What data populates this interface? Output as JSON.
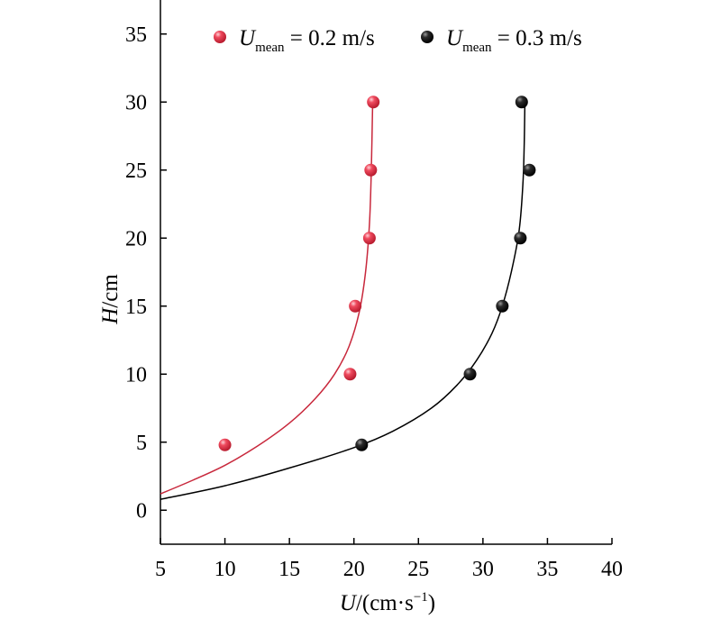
{
  "chart_data": {
    "type": "scatter",
    "xlabel": {
      "var": "U",
      "unit": "/(cm·s",
      "exp": "−1",
      "close": ")"
    },
    "ylabel": {
      "var": "H",
      "unit": "/cm"
    },
    "xlim": [
      5,
      40
    ],
    "ylim": [
      -2.5,
      37.5
    ],
    "xticks": [
      5,
      10,
      15,
      20,
      25,
      30,
      35,
      40
    ],
    "yticks": [
      0,
      5,
      10,
      15,
      20,
      25,
      30,
      35
    ],
    "grid": false,
    "legend_position": "top",
    "series": [
      {
        "name": "U_mean = 0.2 m/s",
        "legend": {
          "var": "U",
          "sub": "mean",
          "rest": " = 0.2 m/s"
        },
        "color": "#e8344a",
        "line_color": "#c8283c",
        "points": [
          {
            "x": 10.0,
            "y": 4.8
          },
          {
            "x": 19.7,
            "y": 10
          },
          {
            "x": 20.1,
            "y": 15
          },
          {
            "x": 21.2,
            "y": 20
          },
          {
            "x": 21.3,
            "y": 25
          },
          {
            "x": 21.5,
            "y": 30
          }
        ],
        "fit": [
          {
            "x": 5.0,
            "y": 1.2
          },
          {
            "x": 7.5,
            "y": 2.2
          },
          {
            "x": 10.0,
            "y": 3.3
          },
          {
            "x": 12.5,
            "y": 4.7
          },
          {
            "x": 15.0,
            "y": 6.4
          },
          {
            "x": 17.0,
            "y": 8.2
          },
          {
            "x": 18.5,
            "y": 10.0
          },
          {
            "x": 19.6,
            "y": 12.0
          },
          {
            "x": 20.4,
            "y": 14.5
          },
          {
            "x": 20.9,
            "y": 17.5
          },
          {
            "x": 21.2,
            "y": 21.0
          },
          {
            "x": 21.35,
            "y": 25.0
          },
          {
            "x": 21.45,
            "y": 30.0
          }
        ]
      },
      {
        "name": "U_mean = 0.3 m/s",
        "legend": {
          "var": "U",
          "sub": "mean",
          "rest": " = 0.3 m/s"
        },
        "color": "#1a1a1a",
        "line_color": "#000000",
        "points": [
          {
            "x": 20.6,
            "y": 4.8
          },
          {
            "x": 29.0,
            "y": 10
          },
          {
            "x": 31.5,
            "y": 15
          },
          {
            "x": 32.9,
            "y": 20
          },
          {
            "x": 33.6,
            "y": 25
          },
          {
            "x": 33.0,
            "y": 30
          }
        ],
        "fit": [
          {
            "x": 5.0,
            "y": 0.8
          },
          {
            "x": 10.0,
            "y": 1.8
          },
          {
            "x": 15.0,
            "y": 3.1
          },
          {
            "x": 20.0,
            "y": 4.6
          },
          {
            "x": 23.0,
            "y": 5.8
          },
          {
            "x": 26.0,
            "y": 7.5
          },
          {
            "x": 28.0,
            "y": 9.2
          },
          {
            "x": 29.5,
            "y": 11.0
          },
          {
            "x": 30.7,
            "y": 13.0
          },
          {
            "x": 31.5,
            "y": 15.0
          },
          {
            "x": 32.2,
            "y": 17.5
          },
          {
            "x": 32.8,
            "y": 20.5
          },
          {
            "x": 33.1,
            "y": 24.0
          },
          {
            "x": 33.2,
            "y": 27.0
          },
          {
            "x": 33.25,
            "y": 30.0
          }
        ]
      }
    ]
  }
}
